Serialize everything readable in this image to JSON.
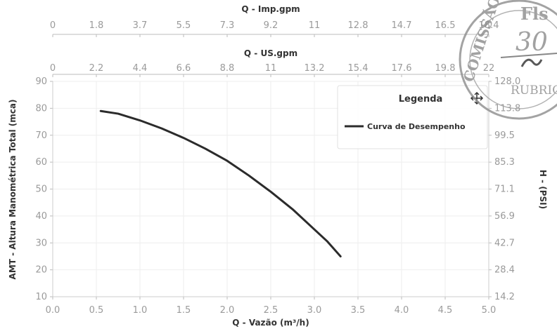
{
  "chart_data": {
    "type": "line",
    "xlabel": "Q - Vazão (m³/h)",
    "ylabel": "AMT - Altura Manométrica Total (mca)",
    "y2label": "H - (PSI)",
    "x_top1_label": "Q - Imp.gpm",
    "x_top2_label": "Q - US.gpm",
    "xlim": [
      0,
      5
    ],
    "ylim": [
      10,
      90
    ],
    "x_ticks": [
      "0.0",
      "0.5",
      "1.0",
      "1.5",
      "2.0",
      "2.5",
      "3.0",
      "3.5",
      "4.0",
      "4.5",
      "5.0"
    ],
    "y_ticks": [
      "10",
      "20",
      "30",
      "40",
      "50",
      "60",
      "70",
      "80",
      "90"
    ],
    "y2_ticks": [
      "14.2",
      "28.4",
      "42.7",
      "56.9",
      "71.1",
      "85.3",
      "99.5",
      "113.8",
      "128.0"
    ],
    "x_top1_ticks": [
      "0",
      "1.8",
      "3.7",
      "5.5",
      "7.3",
      "9.2",
      "11",
      "12.8",
      "14.7",
      "16.5",
      "18.4"
    ],
    "x_top2_ticks": [
      "0",
      "2.2",
      "4.4",
      "6.6",
      "8.8",
      "11",
      "13.2",
      "15.4",
      "17.6",
      "19.8",
      "22"
    ],
    "grid": true,
    "legend": {
      "title": "Legenda",
      "position": "top-right"
    },
    "series": [
      {
        "name": "Curva de Desempenho",
        "color": "#2b2b2b",
        "x": [
          0.55,
          0.75,
          1.0,
          1.25,
          1.5,
          1.75,
          2.0,
          2.25,
          2.5,
          2.75,
          3.0,
          3.15,
          3.3
        ],
        "y": [
          79,
          78,
          75.5,
          72.5,
          69,
          65,
          60.5,
          55,
          49,
          42.5,
          35,
          30.5,
          25
        ]
      }
    ]
  },
  "stamp": {
    "arc_text": "COMISSÃO",
    "fls_label": "Fls",
    "number": "30",
    "rubrica": "RUBRICA"
  }
}
